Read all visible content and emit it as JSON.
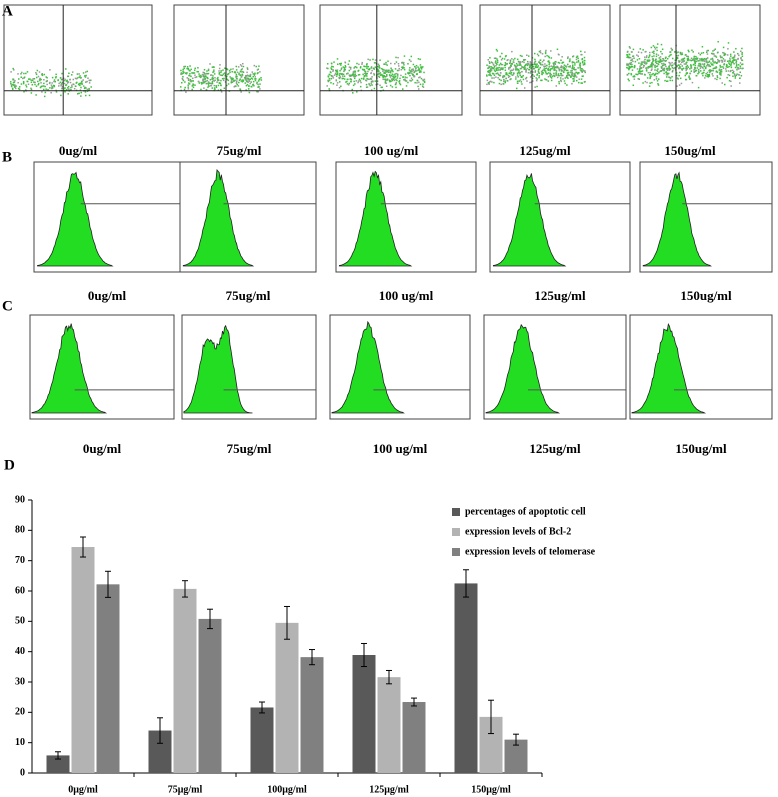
{
  "panels": [
    {
      "label": "A",
      "captions": [
        "0ug/ml",
        "75ug/ml",
        "100 ug/ml",
        "125ug/ml",
        "150ug/ml"
      ]
    },
    {
      "label": "B",
      "captions": [
        "0ug/ml",
        "75ug/ml",
        "100 ug/ml",
        "125ug/ml",
        "150ug/ml"
      ]
    },
    {
      "label": "C",
      "captions": [
        "0ug/ml",
        "75ug/ml",
        "100 ug/ml",
        "125ug/ml",
        "150ug/ml"
      ]
    },
    {
      "label": "D"
    }
  ],
  "chart_data": {
    "type": "bar",
    "categories": [
      "0μg/ml",
      "75μg/ml",
      "100μg/ml",
      "125μg/ml",
      "150μg/ml"
    ],
    "series": [
      {
        "name": "percentages of apoptotic cell",
        "color": "#595959",
        "values": [
          5.8,
          14,
          21.6,
          38.9,
          62.5
        ],
        "errors": [
          1.2,
          4.2,
          1.8,
          3.8,
          4.5
        ]
      },
      {
        "name": "expression levels of Bcl-2",
        "color": "#b3b3b3",
        "values": [
          74.5,
          60.7,
          49.5,
          31.6,
          18.5
        ],
        "errors": [
          3.3,
          2.7,
          5.4,
          2.2,
          5.5
        ]
      },
      {
        "name": "expression levels of telomerase",
        "color": "#808080",
        "values": [
          62.2,
          50.8,
          38.2,
          23.4,
          11
        ],
        "errors": [
          4.3,
          3.2,
          2.5,
          1.3,
          1.8
        ]
      }
    ],
    "ylim": [
      0,
      90
    ],
    "yticks": [
      0,
      10,
      20,
      30,
      40,
      50,
      60,
      70,
      80,
      90
    ]
  }
}
